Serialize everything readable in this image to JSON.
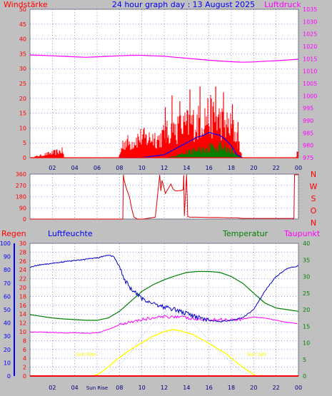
{
  "header": {
    "left": "Windstärke",
    "center": "24 hour graph day : 13 August 2025",
    "right": "Luftdruck"
  },
  "labels": {
    "regen": "Regen",
    "luftfeuchte": "Luftfeuchte",
    "temperatur": "Temperatur",
    "taupunkt": "Taupunkt",
    "sunrise": "Sun Rise",
    "sunset": "Sun Set"
  },
  "colors": {
    "background": "#c0c0c0",
    "plot_bg": "#ffffff",
    "wind": "#ff0000",
    "gust": "#0000ff",
    "avg": "#008000",
    "pressure": "#ff00ff",
    "humidity": "#0000c8",
    "temperature": "#008000",
    "dewpoint": "#ff00ff",
    "solar": "#ffff00",
    "uv": "#a0c0ff",
    "rain": "#ff0000"
  },
  "chart_data": [
    {
      "type": "area",
      "name": "wind-panel",
      "title": "24 hour graph day : 13 August 2025",
      "ylabel_left": "Windstärke",
      "ylabel_right": "Luftdruck",
      "xlim": [
        0,
        24
      ],
      "x_ticks": [
        "02",
        "04",
        "06",
        "08",
        "10",
        "12",
        "14",
        "16",
        "18",
        "20",
        "22",
        "00"
      ],
      "ylim_left": [
        0,
        50
      ],
      "y_ticks_left": [
        0,
        5,
        10,
        15,
        20,
        25,
        30,
        35,
        40,
        45,
        50
      ],
      "ylim_right": [
        975,
        1035
      ],
      "y_ticks_right": [
        975,
        980,
        985,
        990,
        995,
        1000,
        1005,
        1010,
        1015,
        1020,
        1025,
        1030,
        1035
      ],
      "pressure": {
        "x": [
          0,
          1,
          2,
          3,
          4,
          5,
          6,
          7,
          8,
          9,
          10,
          11,
          12,
          13,
          14,
          15,
          16,
          17,
          18,
          19,
          20,
          21,
          22,
          23,
          24
        ],
        "y": [
          1016.5,
          1016.4,
          1016.2,
          1016,
          1015.8,
          1015.6,
          1015.8,
          1016,
          1016.2,
          1016.4,
          1016.4,
          1016.2,
          1016,
          1015.6,
          1015.2,
          1014.8,
          1014.4,
          1014.1,
          1013.8,
          1013.6,
          1013.7,
          1014,
          1014.2,
          1014.5,
          1014.8
        ]
      },
      "wind_envelope": {
        "x": [
          0,
          2.95,
          3.05,
          7.9,
          8,
          8.3,
          8.6,
          9,
          9.5,
          10,
          10.5,
          11,
          11.5,
          12,
          12.5,
          13,
          13.5,
          14,
          14.5,
          15,
          15.5,
          16,
          16.5,
          17,
          17.5,
          18,
          18.5,
          18.8,
          19,
          23.8,
          23.9,
          24
        ],
        "y": [
          0,
          3,
          0,
          0,
          1,
          6,
          7,
          6,
          8,
          9,
          8,
          9,
          8,
          10,
          11,
          12,
          13,
          14,
          15,
          15,
          17,
          18,
          17,
          16,
          14,
          13,
          9,
          3,
          0,
          0,
          3,
          0
        ]
      },
      "wind_peaks": {
        "x": [
          12.1,
          12.7,
          13.4,
          14.3,
          15.2,
          15.9,
          16.6,
          17.3,
          18.1,
          18.6
        ],
        "y": [
          17,
          21,
          19,
          23,
          24,
          20,
          24,
          22,
          18,
          12
        ]
      },
      "gust": {
        "x": [
          8,
          9,
          10,
          11,
          12,
          12.5,
          13,
          13.5,
          14,
          14.5,
          15,
          15.5,
          16,
          16.5,
          17,
          17.5,
          18,
          18.5,
          19
        ],
        "y": [
          0,
          0,
          0,
          0.5,
          1,
          2,
          3,
          4,
          5,
          6,
          7,
          7.5,
          8.5,
          8,
          7.5,
          6,
          4,
          1,
          0
        ]
      },
      "avg_wind": {
        "x": [
          8,
          10,
          12,
          13,
          14,
          15,
          16,
          17,
          18,
          18.5,
          19
        ],
        "y": [
          0,
          0,
          0,
          0.5,
          2,
          3,
          4,
          4.5,
          3,
          1,
          0
        ]
      }
    },
    {
      "type": "line",
      "name": "direction-panel",
      "xlim": [
        0,
        24
      ],
      "ylim": [
        0,
        360
      ],
      "y_ticks": [
        0,
        90,
        180,
        270,
        360
      ],
      "compass": [
        "N",
        "W",
        "S",
        "O",
        "N"
      ],
      "direction": {
        "x": [
          0,
          8.3,
          8.35,
          8.4,
          8.6,
          8.9,
          9.1,
          9.3,
          9.6,
          10.1,
          10.6,
          11.2,
          11.6,
          11.7,
          11.8,
          12,
          12.1,
          12.6,
          12.8,
          13,
          13.5,
          13.7,
          13.75,
          13.8,
          14,
          14.1,
          14.3,
          14.9,
          15.5,
          16,
          16.5,
          17,
          17.5,
          18,
          18.5,
          19,
          23.6,
          23.65,
          24
        ],
        "y": [
          0,
          0,
          355,
          320,
          250,
          175,
          80,
          15,
          0,
          0,
          6,
          15,
          355,
          225,
          310,
          245,
          205,
          280,
          240,
          225,
          228,
          235,
          352,
          25,
          355,
          20,
          15,
          15,
          14,
          12,
          13,
          12,
          10,
          10,
          10,
          5,
          5,
          355,
          355
        ]
      }
    },
    {
      "type": "line",
      "name": "climate-panel",
      "labels": [
        "Regen",
        "Luftfeuchte",
        "Temperatur",
        "Taupunkt",
        "Sun Rise",
        "Sun Set"
      ],
      "xlim": [
        0,
        24
      ],
      "x_ticks": [
        "02",
        "04",
        "SunRise",
        "08",
        "10",
        "12",
        "14",
        "16",
        "18",
        "20",
        "22",
        "00"
      ],
      "ylim_humidity": [
        0,
        100
      ],
      "y_ticks_humidity": [
        0,
        10,
        20,
        30,
        40,
        50,
        60,
        70,
        80,
        90,
        100
      ],
      "ylim_rain": [
        0,
        30
      ],
      "y_ticks_rain": [
        0,
        2,
        4,
        6,
        8,
        10,
        12,
        14,
        16,
        18,
        20,
        22,
        24,
        26,
        28,
        30
      ],
      "ylim_temperature": [
        0,
        40
      ],
      "y_ticks_temperature": [
        0,
        5,
        10,
        15,
        20,
        25,
        30,
        35,
        40
      ],
      "sunrise_hour": 5.0,
      "sunset_hour": 20.25,
      "humidity": {
        "x": [
          0,
          1,
          2,
          3,
          4,
          5,
          6,
          7,
          7.5,
          8,
          8.5,
          9,
          9.5,
          10,
          11,
          12,
          13,
          14,
          15,
          16,
          17,
          18,
          19,
          20,
          21,
          22,
          23,
          24
        ],
        "y": [
          82,
          84,
          85,
          86,
          87,
          88,
          89,
          91,
          90,
          82,
          72,
          66,
          62,
          58,
          55,
          52,
          50,
          47,
          44,
          42,
          41,
          42,
          44,
          50,
          64,
          75,
          81,
          83
        ]
      },
      "temperature": {
        "x": [
          0,
          1,
          2,
          3,
          4,
          5,
          6,
          7,
          8,
          9,
          10,
          11,
          12,
          13,
          14,
          15,
          16,
          17,
          18,
          19,
          20,
          21,
          22,
          23,
          24
        ],
        "y": [
          18.5,
          18,
          17.5,
          17.2,
          17,
          16.8,
          16.8,
          17.5,
          19.5,
          22.5,
          25.5,
          27.5,
          29,
          30.2,
          31.2,
          31.5,
          31.5,
          31.2,
          30,
          28,
          25,
          22,
          20.5,
          20,
          19.5
        ]
      },
      "dewpoint": {
        "x": [
          0,
          1,
          2,
          3,
          4,
          5,
          6,
          7,
          8,
          9,
          10,
          11,
          12,
          13,
          14,
          15,
          16,
          17,
          18,
          19,
          20,
          21,
          22,
          23,
          24
        ],
        "y": [
          13.2,
          13.2,
          13.1,
          13,
          13,
          12.9,
          13,
          14,
          15.5,
          16.5,
          17,
          17.5,
          17.8,
          18,
          17.5,
          17,
          17,
          17,
          17,
          17.2,
          17.8,
          17.5,
          16.8,
          16.2,
          15.8
        ]
      },
      "solar": {
        "x": [
          0,
          5.5,
          6,
          6.4,
          7,
          8,
          9,
          10,
          11,
          12,
          12.8,
          13.5,
          14.5,
          15.5,
          16.5,
          17.5,
          18.5,
          19.3,
          20.2,
          24
        ],
        "y": [
          0,
          0,
          1,
          3,
          7,
          14,
          20,
          25,
          30,
          33.5,
          35,
          34,
          31.5,
          27,
          22,
          17,
          10,
          5,
          0,
          0
        ]
      },
      "uv": {
        "x": [
          0,
          6,
          7,
          8,
          9,
          10,
          11,
          12,
          12.5,
          13,
          14,
          15,
          16,
          17,
          18,
          19,
          20,
          24
        ],
        "y": [
          0,
          0,
          2,
          8,
          18,
          30,
          40,
          48,
          51,
          50,
          44,
          36,
          27,
          18,
          10,
          3,
          0,
          0
        ]
      },
      "rain": {
        "x": [
          0,
          24
        ],
        "y": [
          0,
          0
        ]
      }
    }
  ]
}
